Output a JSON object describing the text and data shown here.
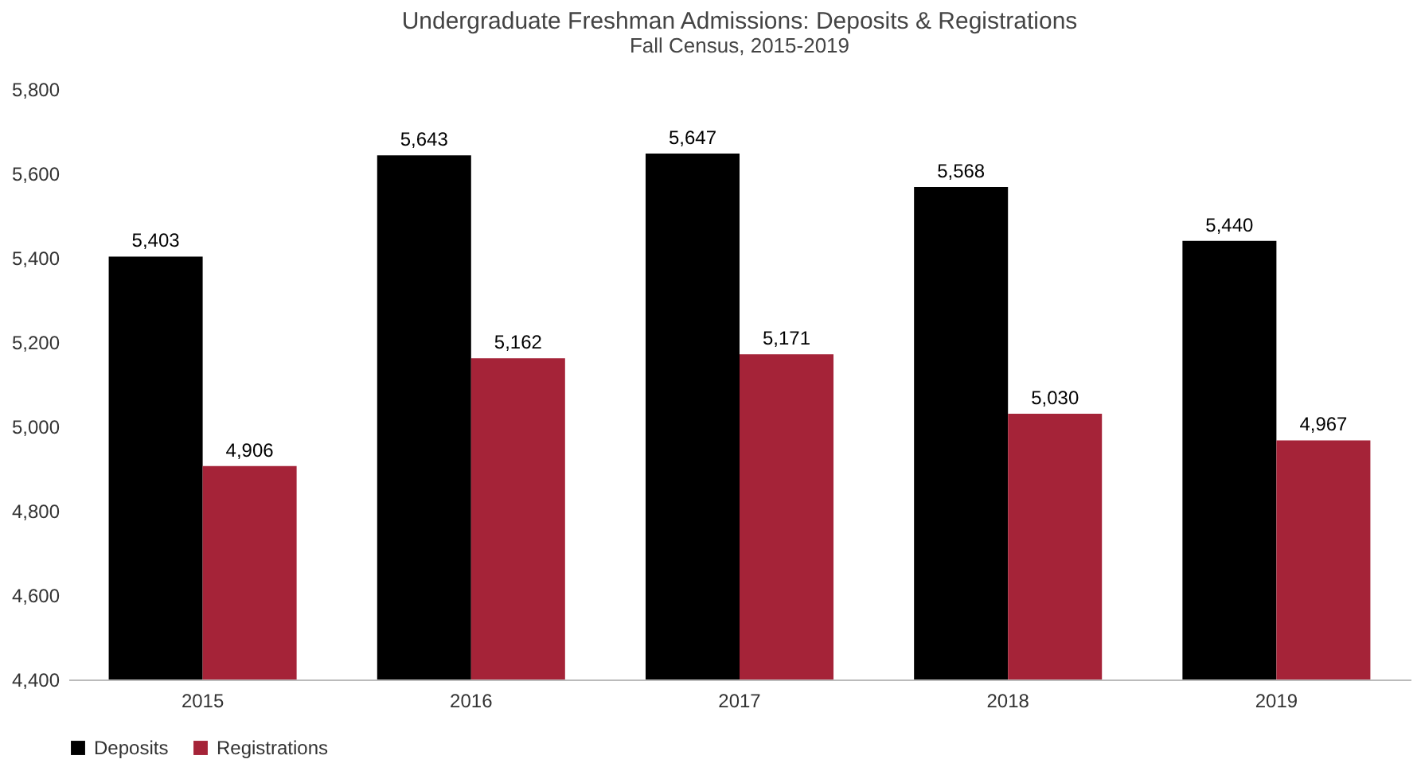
{
  "chart_data": {
    "type": "bar",
    "title": "Undergraduate Freshman Admissions: Deposits & Registrations",
    "subtitle": "Fall Census, 2015-2019",
    "categories": [
      "2015",
      "2016",
      "2017",
      "2018",
      "2019"
    ],
    "series": [
      {
        "name": "Deposits",
        "color": "#000000",
        "values": [
          5403,
          5643,
          5647,
          5568,
          5440
        ],
        "value_labels": [
          "5,403",
          "5,643",
          "5,647",
          "5,568",
          "5,440"
        ]
      },
      {
        "name": "Registrations",
        "color": "#a52338",
        "values": [
          4906,
          5162,
          5171,
          5030,
          4967
        ],
        "value_labels": [
          "4,906",
          "5,162",
          "5,171",
          "5,030",
          "4,967"
        ]
      }
    ],
    "ylim": [
      4400,
      5800
    ],
    "yticks": [
      {
        "value": 4400,
        "label": "4,400"
      },
      {
        "value": 4600,
        "label": "4,600"
      },
      {
        "value": 4800,
        "label": "4,800"
      },
      {
        "value": 5000,
        "label": "5,000"
      },
      {
        "value": 5200,
        "label": "5,200"
      },
      {
        "value": 5400,
        "label": "5,400"
      },
      {
        "value": 5600,
        "label": "5,600"
      },
      {
        "value": 5800,
        "label": "5,800"
      }
    ],
    "legend": "bottom",
    "grid": false
  }
}
